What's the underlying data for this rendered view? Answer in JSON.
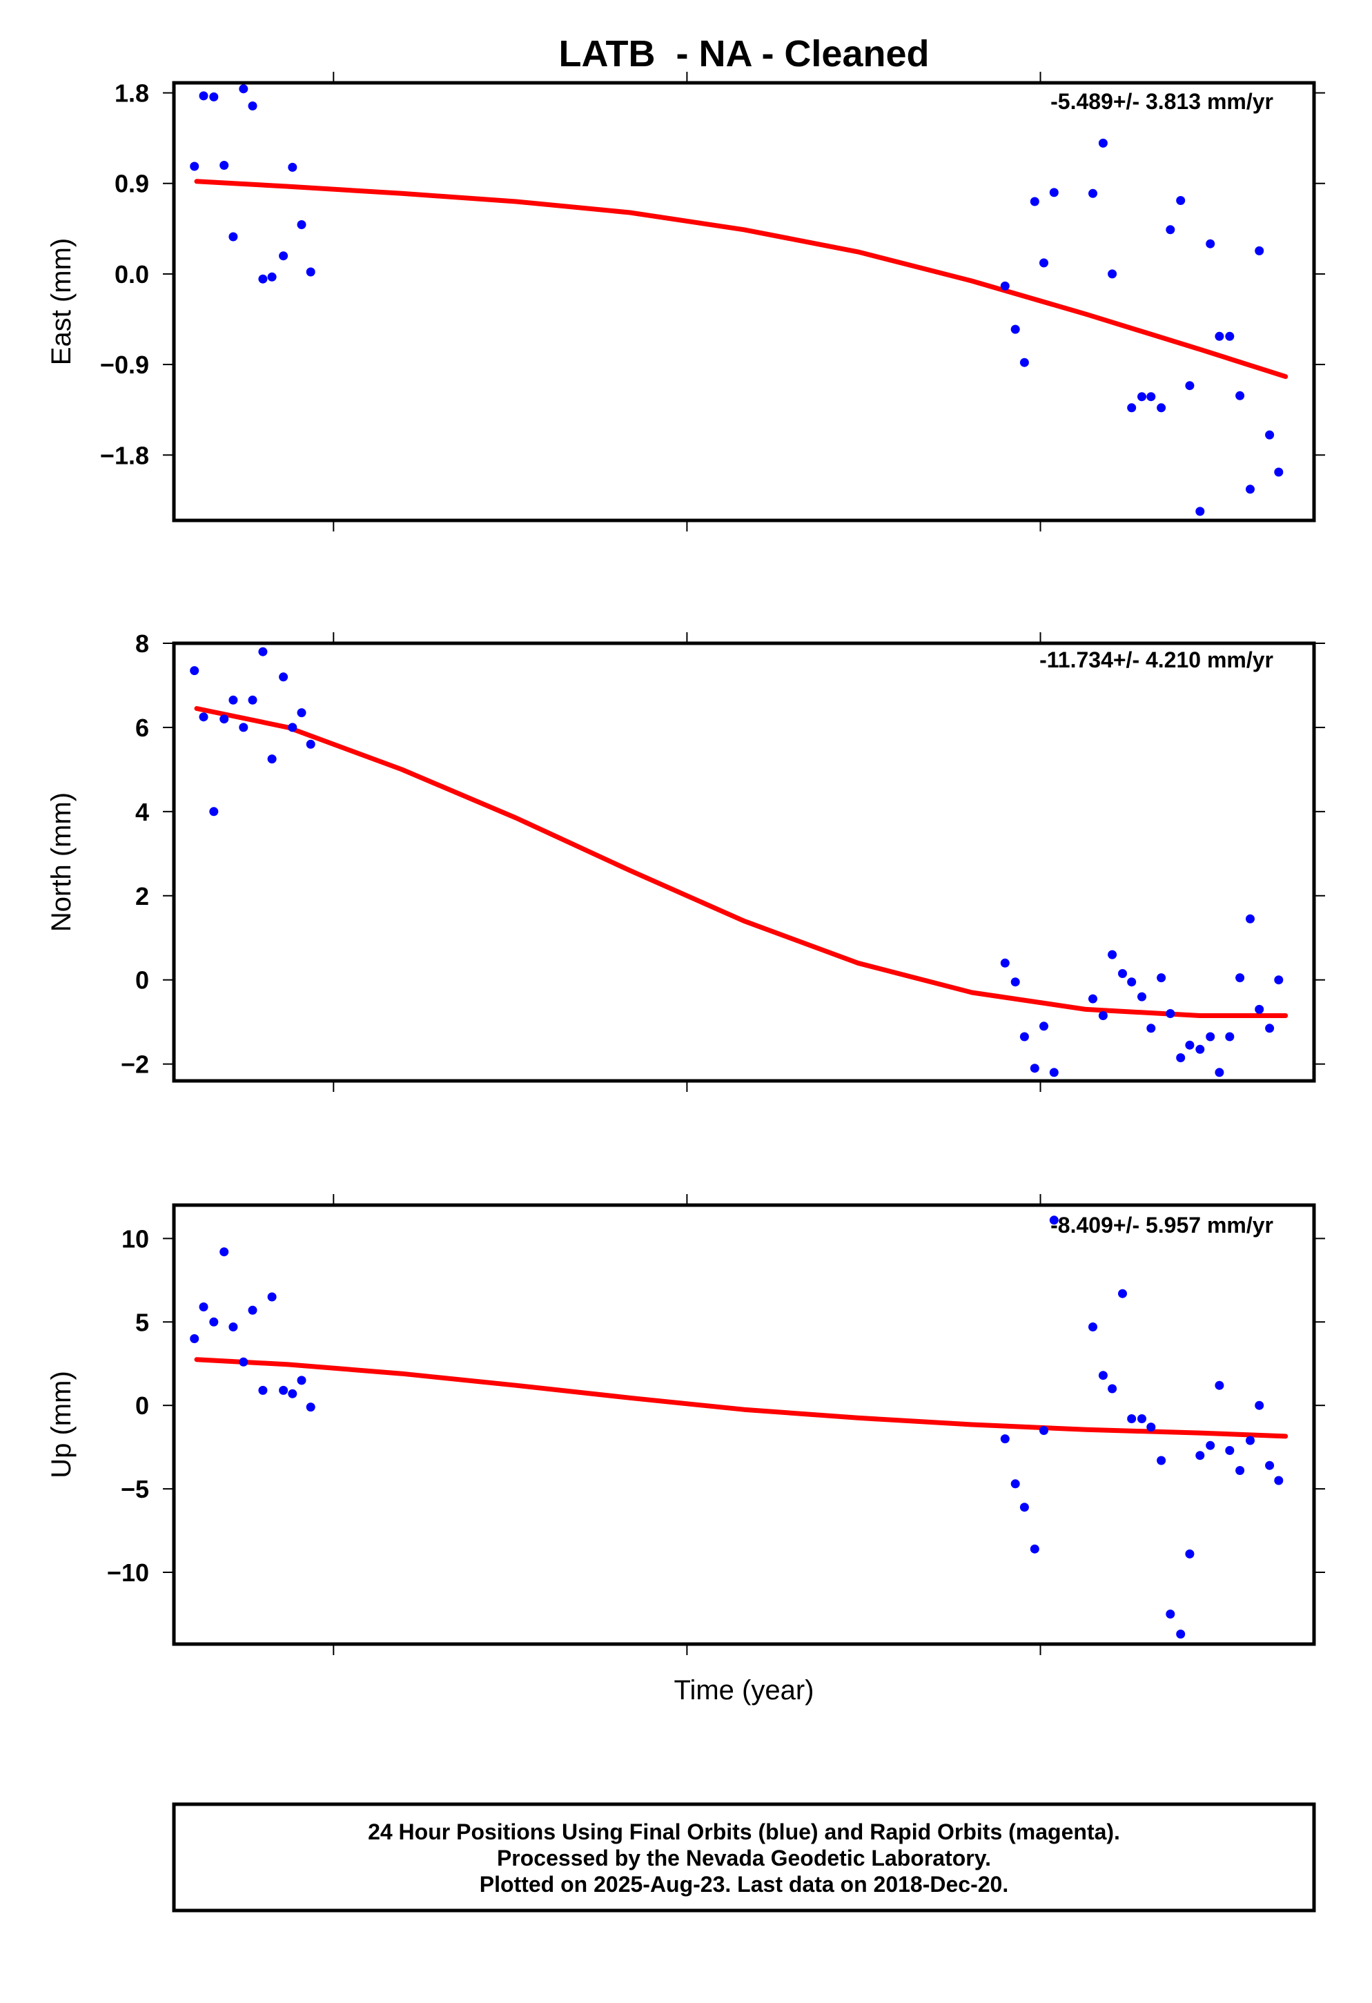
{
  "chart_data": {
    "type": "scatter",
    "title": "LATB  - NA - Cleaned",
    "xlabel": "Time (year)",
    "xlim": [
      0,
      1000
    ],
    "x_ticks": [
      140,
      450,
      760
    ],
    "footer": [
      "24 Hour Positions Using Final Orbits (blue) and Rapid Orbits (magenta).",
      "Processed by the Nevada Geodetic Laboratory.",
      "Plotted on 2025-Aug-23. Last data on 2018-Dec-20."
    ],
    "colors": {
      "points": "#0000ff",
      "fit": "#ff0000",
      "axes": "#000000"
    },
    "panels": [
      {
        "name": "east",
        "ylabel": "East (mm)",
        "rate": "-5.489+/- 3.813 mm/yr",
        "ylim": [
          -2.45,
          1.9
        ],
        "yticks": [
          1.8,
          0.9,
          0.0,
          -0.9,
          -1.8
        ],
        "ytick_labels": [
          "1.8",
          "0.9",
          "0.0",
          "−0.9",
          "−1.8"
        ],
        "points": {
          "x": [
            18,
            26,
            35,
            44,
            52,
            61,
            69,
            78,
            86,
            96,
            104,
            112,
            120,
            729,
            738,
            746,
            755,
            763,
            772,
            806,
            815,
            823,
            840,
            849,
            857,
            866,
            874,
            883,
            891,
            900,
            909,
            917,
            926,
            935,
            944,
            952,
            961,
            969
          ],
          "y": [
            1.07,
            1.77,
            1.76,
            1.08,
            0.37,
            1.84,
            1.67,
            -0.05,
            -0.03,
            0.18,
            1.06,
            0.49,
            0.02,
            -0.12,
            -0.55,
            -0.88,
            0.72,
            0.11,
            0.81,
            0.8,
            1.3,
            0.0,
            -1.33,
            -1.22,
            -1.22,
            -1.33,
            0.44,
            0.73,
            -1.11,
            -2.36,
            0.3,
            -0.62,
            -0.62,
            -1.21,
            -2.14,
            0.23,
            -1.6,
            -1.97
          ]
        },
        "fit": {
          "x": [
            20,
            100,
            200,
            300,
            400,
            500,
            600,
            700,
            800,
            900,
            975
          ],
          "y": [
            0.92,
            0.87,
            0.8,
            0.72,
            0.61,
            0.44,
            0.22,
            -0.07,
            -0.4,
            -0.75,
            -1.02
          ]
        }
      },
      {
        "name": "north",
        "ylabel": "North (mm)",
        "rate": "-11.734+/- 4.210 mm/yr",
        "ylim": [
          -2.4,
          8.0
        ],
        "yticks": [
          8,
          6,
          4,
          2,
          0,
          -2
        ],
        "ytick_labels": [
          "8",
          "6",
          "4",
          "2",
          "0",
          "−2"
        ],
        "points": {
          "x": [
            18,
            26,
            35,
            44,
            52,
            61,
            69,
            78,
            86,
            96,
            104,
            112,
            120,
            729,
            738,
            746,
            755,
            763,
            772,
            806,
            815,
            823,
            832,
            840,
            849,
            857,
            866,
            874,
            883,
            891,
            900,
            909,
            917,
            926,
            935,
            944,
            952,
            961,
            969
          ],
          "y": [
            7.35,
            6.25,
            4.0,
            6.2,
            6.65,
            6.0,
            6.65,
            7.8,
            5.25,
            7.2,
            6.0,
            6.35,
            5.6,
            0.4,
            -0.05,
            -1.35,
            -2.1,
            -1.1,
            -2.2,
            -0.45,
            -0.85,
            0.6,
            0.15,
            -0.05,
            -0.4,
            -1.15,
            0.05,
            -0.8,
            -1.85,
            -1.55,
            -1.65,
            -1.35,
            -2.2,
            -1.35,
            0.05,
            1.45,
            -0.7,
            -1.15,
            0.0
          ]
        },
        "fit": {
          "x": [
            20,
            100,
            200,
            300,
            400,
            500,
            600,
            700,
            800,
            900,
            975
          ],
          "y": [
            6.45,
            6.0,
            5.0,
            3.85,
            2.6,
            1.4,
            0.4,
            -0.3,
            -0.7,
            -0.85,
            -0.85
          ]
        }
      },
      {
        "name": "up",
        "ylabel": "Up (mm)",
        "rate": "-8.409+/- 5.957 mm/yr",
        "ylim": [
          -14.3,
          12.0
        ],
        "yticks": [
          10,
          5,
          0,
          -5,
          -10
        ],
        "ytick_labels": [
          "10",
          "5",
          "0",
          "−5",
          "−10"
        ],
        "points": {
          "x": [
            18,
            26,
            35,
            44,
            52,
            61,
            69,
            78,
            86,
            96,
            104,
            112,
            120,
            729,
            738,
            746,
            755,
            763,
            772,
            806,
            815,
            823,
            832,
            840,
            849,
            857,
            866,
            874,
            883,
            891,
            900,
            909,
            917,
            926,
            935,
            944,
            952,
            961,
            969
          ],
          "y": [
            4.0,
            5.9,
            5.0,
            9.2,
            4.7,
            2.6,
            5.7,
            0.9,
            6.5,
            0.9,
            0.7,
            1.5,
            -0.1,
            -2.0,
            -4.7,
            -6.1,
            -8.6,
            -1.5,
            11.1,
            4.7,
            1.8,
            1.0,
            6.7,
            -0.8,
            -0.8,
            -1.3,
            -3.3,
            -12.5,
            -13.7,
            -8.9,
            -3.0,
            -2.4,
            1.2,
            -2.7,
            -3.9,
            -2.1,
            0.0,
            -3.6,
            -4.5
          ]
        },
        "fit": {
          "x": [
            20,
            100,
            200,
            300,
            400,
            500,
            600,
            700,
            800,
            900,
            975
          ],
          "y": [
            2.75,
            2.45,
            1.9,
            1.2,
            0.45,
            -0.25,
            -0.75,
            -1.15,
            -1.45,
            -1.65,
            -1.85
          ]
        }
      }
    ]
  }
}
